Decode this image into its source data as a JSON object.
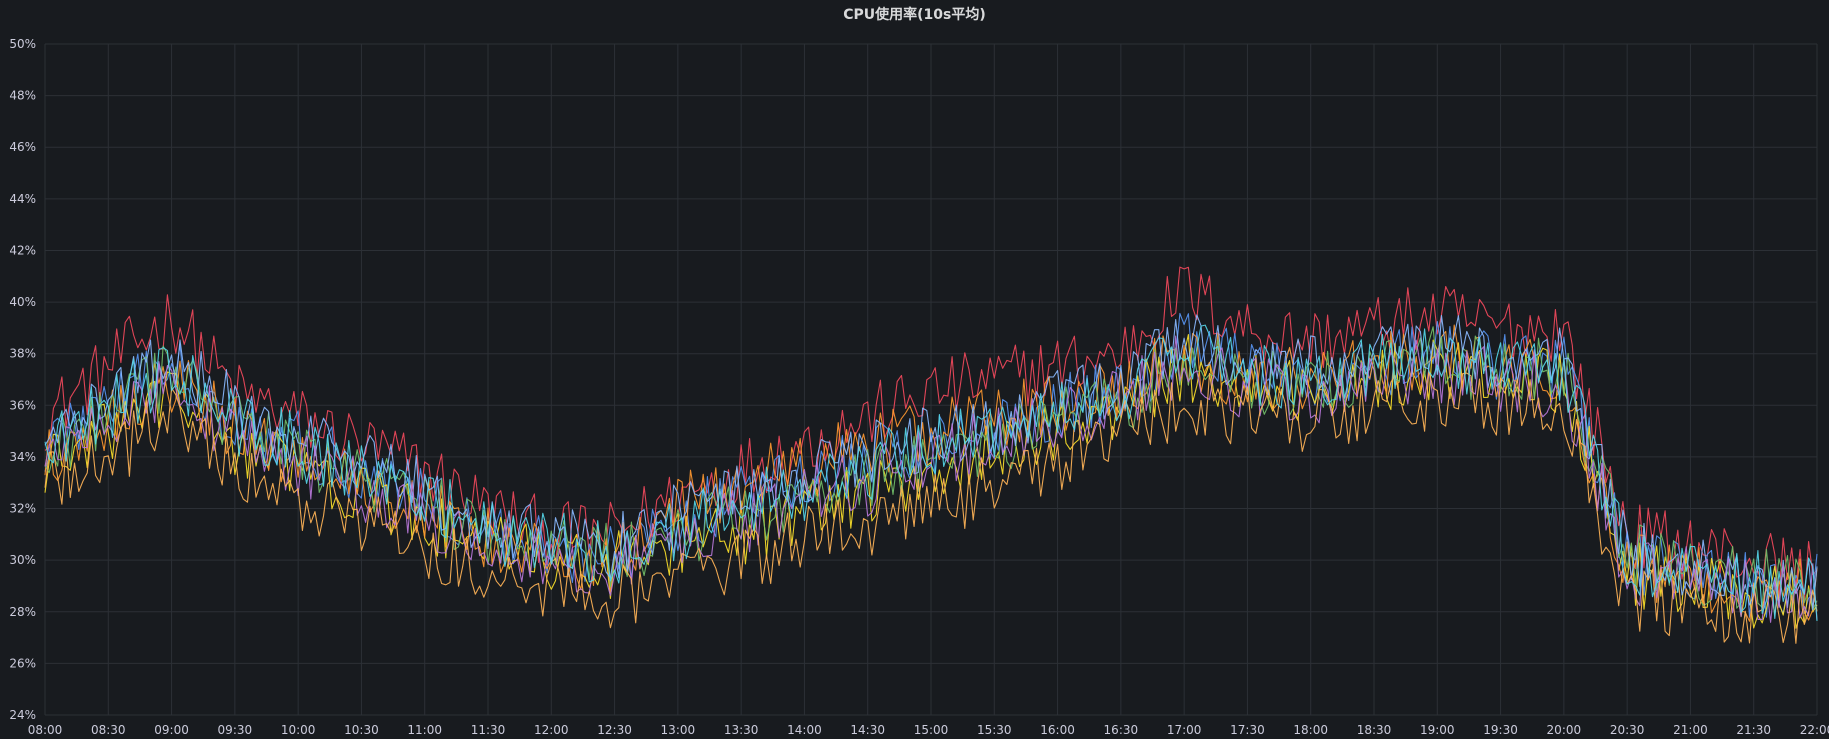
{
  "panel": {
    "title": "CPU使用率(10s平均)"
  },
  "chart_data": {
    "type": "line",
    "title": "CPU使用率(10s平均)",
    "xlabel": "",
    "ylabel": "",
    "ylim": [
      24,
      50
    ],
    "y_ticks": [
      "24%",
      "26%",
      "28%",
      "30%",
      "32%",
      "34%",
      "36%",
      "38%",
      "40%",
      "42%",
      "44%",
      "46%",
      "48%",
      "50%"
    ],
    "x_ticks": [
      "08:00",
      "08:30",
      "09:00",
      "09:30",
      "10:00",
      "10:30",
      "11:00",
      "11:30",
      "12:00",
      "12:30",
      "13:00",
      "13:30",
      "14:00",
      "14:30",
      "15:00",
      "15:30",
      "16:00",
      "16:30",
      "17:00",
      "17:30",
      "18:00",
      "18:30",
      "19:00",
      "19:30",
      "20:00",
      "20:30",
      "21:00",
      "21:30",
      "22:00"
    ],
    "xlim": [
      "08:00",
      "22:00"
    ],
    "grid": true,
    "legend": "none",
    "x": [
      "08:00",
      "08:30",
      "09:00",
      "09:30",
      "10:00",
      "10:30",
      "11:00",
      "11:30",
      "12:00",
      "12:30",
      "13:00",
      "13:30",
      "14:00",
      "14:30",
      "15:00",
      "15:30",
      "16:00",
      "16:30",
      "17:00",
      "17:30",
      "18:00",
      "18:30",
      "19:00",
      "19:30",
      "20:00",
      "20:30",
      "21:00",
      "21:30",
      "22:00"
    ],
    "series": [
      {
        "color": "#f2495c",
        "values": [
          35.5,
          37.5,
          39.5,
          36.5,
          35.5,
          34.5,
          33.5,
          32.0,
          31.0,
          31.0,
          32.5,
          33.5,
          34.5,
          35.5,
          36.5,
          37.0,
          37.5,
          38.0,
          40.5,
          39.0,
          38.5,
          39.0,
          39.5,
          39.0,
          39.0,
          31.0,
          30.5,
          30.0,
          29.5
        ]
      },
      {
        "color": "#5794f2",
        "values": [
          34.5,
          36.0,
          37.5,
          35.5,
          34.5,
          33.5,
          32.5,
          31.0,
          30.5,
          30.0,
          31.5,
          32.5,
          33.0,
          34.0,
          34.5,
          35.0,
          36.0,
          36.5,
          38.5,
          37.5,
          37.0,
          37.5,
          38.0,
          37.5,
          37.5,
          30.0,
          29.5,
          29.0,
          29.0
        ]
      },
      {
        "color": "#fade2a",
        "values": [
          33.5,
          35.0,
          36.5,
          34.5,
          33.5,
          32.5,
          31.5,
          30.5,
          30.0,
          29.8,
          30.5,
          31.0,
          32.0,
          32.5,
          33.5,
          34.0,
          35.0,
          36.0,
          37.5,
          36.8,
          36.5,
          37.0,
          37.5,
          37.0,
          37.0,
          29.5,
          29.0,
          28.5,
          28.5
        ]
      },
      {
        "color": "#ff9830",
        "values": [
          34.0,
          35.5,
          37.0,
          35.0,
          34.0,
          33.0,
          32.0,
          30.8,
          30.2,
          30.0,
          32.0,
          33.0,
          33.5,
          34.5,
          35.0,
          35.5,
          36.0,
          36.5,
          38.0,
          37.0,
          37.0,
          37.5,
          38.0,
          37.5,
          37.2,
          29.8,
          29.3,
          28.8,
          28.8
        ]
      },
      {
        "color": "#73bf69",
        "values": [
          34.2,
          35.8,
          37.2,
          35.2,
          34.2,
          33.2,
          32.2,
          31.0,
          30.4,
          30.2,
          31.0,
          31.8,
          32.5,
          33.2,
          34.0,
          34.5,
          35.5,
          36.0,
          37.8,
          37.0,
          36.8,
          37.2,
          37.8,
          37.2,
          37.4,
          30.2,
          29.6,
          29.2,
          29.0
        ]
      },
      {
        "color": "#8ab8ff",
        "values": [
          34.8,
          36.2,
          38.0,
          35.8,
          34.8,
          33.8,
          32.8,
          31.4,
          30.8,
          30.5,
          31.8,
          32.8,
          33.4,
          34.2,
          34.8,
          35.2,
          36.2,
          36.8,
          38.6,
          37.6,
          37.4,
          37.8,
          38.4,
          37.8,
          37.8,
          30.4,
          29.8,
          29.4,
          29.2
        ]
      },
      {
        "color": "#b877d9",
        "values": [
          33.8,
          35.2,
          36.8,
          34.8,
          33.8,
          32.8,
          31.8,
          30.6,
          30.0,
          29.8,
          30.8,
          31.5,
          32.4,
          33.0,
          34.0,
          34.6,
          35.4,
          36.2,
          37.6,
          36.6,
          36.4,
          36.9,
          37.4,
          36.9,
          36.8,
          29.6,
          29.2,
          28.8,
          28.6
        ]
      },
      {
        "color": "#ffb357",
        "values": [
          32.8,
          34.0,
          35.5,
          33.5,
          32.5,
          31.5,
          30.5,
          29.5,
          29.0,
          28.5,
          29.2,
          29.8,
          30.8,
          31.4,
          32.2,
          32.8,
          33.8,
          34.8,
          36.2,
          35.6,
          35.4,
          35.8,
          36.4,
          35.8,
          35.6,
          28.6,
          28.2,
          27.9,
          27.8
        ]
      },
      {
        "color": "#56d6e8",
        "values": [
          34.4,
          35.9,
          37.4,
          35.4,
          34.4,
          33.4,
          32.4,
          31.2,
          30.6,
          30.3,
          31.2,
          32.0,
          32.8,
          33.6,
          34.4,
          34.9,
          35.8,
          36.4,
          38.2,
          37.2,
          37.0,
          37.4,
          38.0,
          37.4,
          37.4,
          30.0,
          29.5,
          29.1,
          28.9
        ]
      }
    ]
  }
}
